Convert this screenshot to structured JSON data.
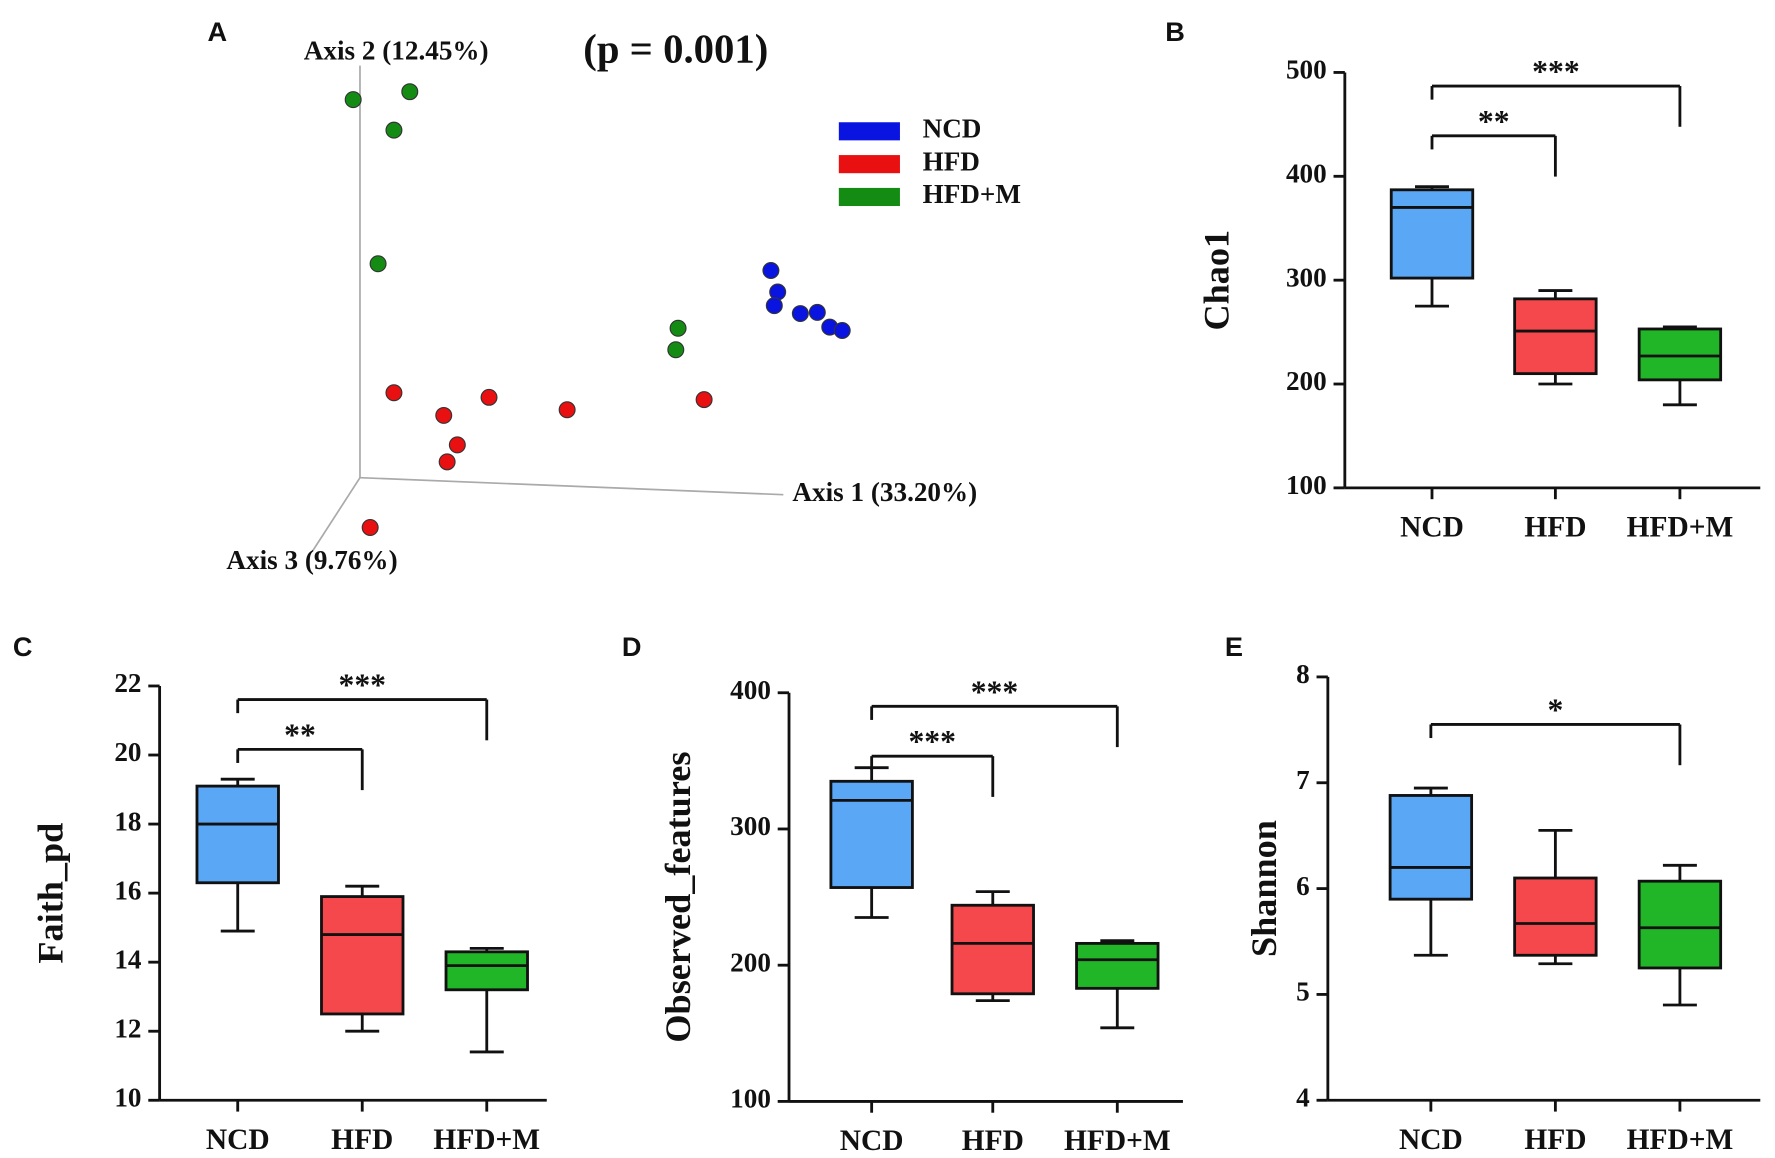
{
  "chart_data": [
    {
      "type": "scatter3d",
      "panel": "A",
      "annotation": "(p = 0.001)",
      "axis_labels": [
        "Axis 1 (33.20%)",
        "Axis 2 (12.45%)",
        "Axis 3 (9.76%)"
      ],
      "xlim": [
        -120,
        580
      ],
      "ylim": [
        -100,
        380
      ],
      "series": [
        {
          "name": "NCD",
          "color": "#0a14e0",
          "x": [
            363,
            369,
            366,
            389,
            404,
            415,
            426
          ],
          "y": [
            183,
            164,
            152,
            145,
            146,
            133,
            130
          ]
        },
        {
          "name": "HFD",
          "color": "#e81010",
          "x": [
            30,
            74,
            114,
            183,
            304,
            86,
            77,
            9
          ],
          "y": [
            75,
            55,
            71,
            60,
            69,
            29,
            14,
            -44
          ]
        },
        {
          "name": "HFD+M",
          "color": "#148c14",
          "x": [
            -6,
            44,
            30,
            16,
            281,
            279
          ],
          "y": [
            334,
            341,
            307,
            189,
            132,
            113
          ]
        }
      ]
    },
    {
      "type": "box",
      "panel": "B",
      "ylabel": "Chao1",
      "categories": [
        "NCD",
        "HFD",
        "HFD+M"
      ],
      "colors": [
        "#5aa7f5",
        "#f5484c",
        "#21b528"
      ],
      "min": [
        275,
        200,
        180
      ],
      "q1": [
        302,
        210,
        204
      ],
      "median": [
        370,
        251,
        227
      ],
      "q3": [
        387,
        282,
        253
      ],
      "max": [
        390,
        290,
        255
      ],
      "ylim": [
        100,
        500
      ],
      "yticks": [
        100,
        200,
        300,
        400,
        500
      ],
      "brackets": [
        {
          "pair": [
            0,
            2
          ],
          "label": "***"
        },
        {
          "pair": [
            0,
            1
          ],
          "label": "**"
        }
      ]
    },
    {
      "type": "box",
      "panel": "C",
      "ylabel": "Faith_pd",
      "categories": [
        "NCD",
        "HFD",
        "HFD+M"
      ],
      "colors": [
        "#5aa7f5",
        "#f5484c",
        "#21b528"
      ],
      "min": [
        14.9,
        12.0,
        11.4
      ],
      "q1": [
        16.3,
        12.5,
        13.2
      ],
      "median": [
        18.0,
        14.8,
        13.9
      ],
      "q3": [
        19.1,
        15.9,
        14.3
      ],
      "max": [
        19.3,
        16.2,
        14.4
      ],
      "ylim": [
        10,
        22
      ],
      "yticks": [
        10,
        12,
        14,
        16,
        18,
        20,
        22
      ],
      "brackets": [
        {
          "pair": [
            0,
            2
          ],
          "label": "***"
        },
        {
          "pair": [
            0,
            1
          ],
          "label": "**"
        }
      ]
    },
    {
      "type": "box",
      "panel": "D",
      "ylabel": "Observed_features",
      "categories": [
        "NCD",
        "HFD",
        "HFD+M"
      ],
      "colors": [
        "#5aa7f5",
        "#f5484c",
        "#21b528"
      ],
      "min": [
        235,
        174,
        154
      ],
      "q1": [
        257,
        179,
        183
      ],
      "median": [
        321,
        216,
        204
      ],
      "q3": [
        335,
        244,
        216
      ],
      "max": [
        345,
        254,
        218
      ],
      "ylim": [
        100,
        400
      ],
      "yticks": [
        100,
        200,
        300,
        400
      ],
      "brackets": [
        {
          "pair": [
            0,
            2
          ],
          "label": "***"
        },
        {
          "pair": [
            0,
            1
          ],
          "label": "***"
        }
      ]
    },
    {
      "type": "box",
      "panel": "E",
      "ylabel": "Shannon",
      "categories": [
        "NCD",
        "HFD",
        "HFD+M"
      ],
      "colors": [
        "#5aa7f5",
        "#f5484c",
        "#21b528"
      ],
      "min": [
        5.37,
        5.29,
        4.9
      ],
      "q1": [
        5.9,
        5.37,
        5.25
      ],
      "median": [
        6.2,
        5.67,
        5.63
      ],
      "q3": [
        6.88,
        6.1,
        6.07
      ],
      "max": [
        6.95,
        6.55,
        6.22
      ],
      "ylim": [
        4,
        8
      ],
      "yticks": [
        4,
        5,
        6,
        7,
        8
      ],
      "brackets": [
        {
          "pair": [
            0,
            2
          ],
          "label": "*"
        }
      ]
    }
  ]
}
